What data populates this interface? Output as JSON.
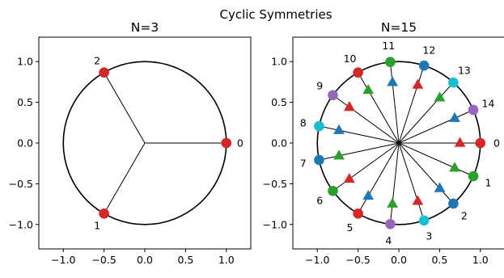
{
  "chart_data": [
    {
      "type": "scatter",
      "title": "N=3",
      "xlim": [
        -1.3,
        1.3
      ],
      "ylim": [
        -1.3,
        1.3
      ],
      "xticks": [
        -1.0,
        -0.5,
        0.0,
        0.5,
        1.0
      ],
      "yticks": [
        -1.0,
        -0.5,
        0.0,
        0.5,
        1.0
      ],
      "tick_labels": [
        "−1.0",
        "−0.5",
        "0.0",
        "0.5",
        "1.0"
      ],
      "grid": false,
      "unit_circle": true,
      "spokes": true,
      "circles": [
        {
          "label": "0",
          "x": 1.0,
          "y": 0.0,
          "color": "#d62728"
        },
        {
          "label": "1",
          "x": -0.5,
          "y": -0.866,
          "color": "#d62728"
        },
        {
          "label": "2",
          "x": -0.5,
          "y": 0.866,
          "color": "#d62728"
        }
      ],
      "triangles": []
    },
    {
      "type": "scatter",
      "title": "N=15",
      "xlim": [
        -1.3,
        1.3
      ],
      "ylim": [
        -1.3,
        1.3
      ],
      "xticks": [
        -1.0,
        -0.5,
        0.0,
        0.5,
        1.0
      ],
      "yticks": [
        -1.0,
        -0.5,
        0.0,
        0.5,
        1.0
      ],
      "tick_labels": [
        "−1.0",
        "−0.5",
        "0.0",
        "0.5",
        "1.0"
      ],
      "grid": false,
      "unit_circle": true,
      "spokes": true,
      "circles": [
        {
          "label": "0",
          "x": 1.0,
          "y": 0.0,
          "color": "#d62728"
        },
        {
          "label": "1",
          "x": 0.914,
          "y": -0.407,
          "color": "#2ca02c"
        },
        {
          "label": "2",
          "x": 0.669,
          "y": -0.743,
          "color": "#1f77b4"
        },
        {
          "label": "3",
          "x": 0.309,
          "y": -0.951,
          "color": "#17becf"
        },
        {
          "label": "4",
          "x": -0.105,
          "y": -0.995,
          "color": "#9467bd"
        },
        {
          "label": "5",
          "x": -0.5,
          "y": -0.866,
          "color": "#d62728"
        },
        {
          "label": "6",
          "x": -0.809,
          "y": -0.588,
          "color": "#2ca02c"
        },
        {
          "label": "7",
          "x": -0.978,
          "y": -0.208,
          "color": "#1f77b4"
        },
        {
          "label": "8",
          "x": -0.978,
          "y": 0.208,
          "color": "#17becf"
        },
        {
          "label": "9",
          "x": -0.809,
          "y": 0.588,
          "color": "#9467bd"
        },
        {
          "label": "10",
          "x": -0.5,
          "y": 0.866,
          "color": "#d62728"
        },
        {
          "label": "11",
          "x": -0.105,
          "y": 0.995,
          "color": "#2ca02c"
        },
        {
          "label": "12",
          "x": 0.309,
          "y": 0.951,
          "color": "#1f77b4"
        },
        {
          "label": "13",
          "x": 0.669,
          "y": 0.743,
          "color": "#17becf"
        },
        {
          "label": "14",
          "x": 0.914,
          "y": 0.407,
          "color": "#9467bd"
        }
      ],
      "triangles": [
        {
          "x": 0.75,
          "y": 0.0,
          "color": "#d62728"
        },
        {
          "x": 0.685,
          "y": -0.305,
          "color": "#2ca02c"
        },
        {
          "x": 0.502,
          "y": -0.557,
          "color": "#1f77b4"
        },
        {
          "x": 0.232,
          "y": -0.713,
          "color": "#d62728"
        },
        {
          "x": -0.078,
          "y": -0.746,
          "color": "#2ca02c"
        },
        {
          "x": -0.375,
          "y": -0.65,
          "color": "#1f77b4"
        },
        {
          "x": -0.607,
          "y": -0.441,
          "color": "#d62728"
        },
        {
          "x": -0.734,
          "y": -0.156,
          "color": "#2ca02c"
        },
        {
          "x": -0.734,
          "y": 0.156,
          "color": "#1f77b4"
        },
        {
          "x": -0.607,
          "y": 0.441,
          "color": "#d62728"
        },
        {
          "x": -0.375,
          "y": 0.65,
          "color": "#2ca02c"
        },
        {
          "x": -0.078,
          "y": 0.746,
          "color": "#1f77b4"
        },
        {
          "x": 0.232,
          "y": 0.713,
          "color": "#d62728"
        },
        {
          "x": 0.502,
          "y": 0.557,
          "color": "#2ca02c"
        },
        {
          "x": 0.685,
          "y": 0.305,
          "color": "#1f77b4"
        }
      ]
    }
  ],
  "suptitle": "Cyclic Symmetries"
}
